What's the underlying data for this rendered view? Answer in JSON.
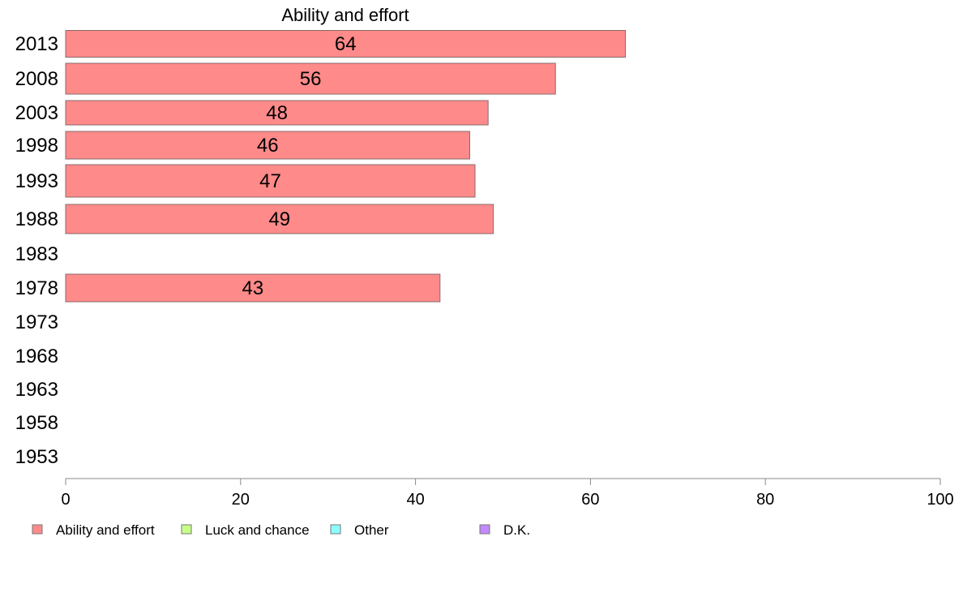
{
  "chart_data": {
    "type": "bar",
    "orientation": "horizontal",
    "title": "Ability and effort",
    "categories": [
      "2013",
      "2008",
      "2003",
      "1998",
      "1993",
      "1988",
      "1983",
      "1978",
      "1973",
      "1968",
      "1963",
      "1958",
      "1953"
    ],
    "series": [
      {
        "name": "Ability and effort",
        "color": "#ff8a8a",
        "values": [
          64,
          56,
          48.3,
          46.2,
          46.8,
          48.9,
          null,
          42.8,
          null,
          null,
          null,
          null,
          null
        ],
        "data_labels": [
          "64",
          "56",
          "48",
          "46",
          "47",
          "49",
          "",
          "43",
          "",
          "",
          "",
          "",
          ""
        ]
      }
    ],
    "xlim": [
      0,
      100
    ],
    "xticks": [
      "0",
      "20",
      "40",
      "60",
      "80",
      "100"
    ],
    "grid": false,
    "legend": {
      "placement": "bottom",
      "items": [
        {
          "label": "Ability and effort",
          "color": "#ff8a8a"
        },
        {
          "label": "Luck and chance",
          "color": "#c8ff8a"
        },
        {
          "label": "Other",
          "color": "#8affff"
        },
        {
          "label": "D.K.",
          "color": "#c48aff"
        }
      ]
    }
  }
}
